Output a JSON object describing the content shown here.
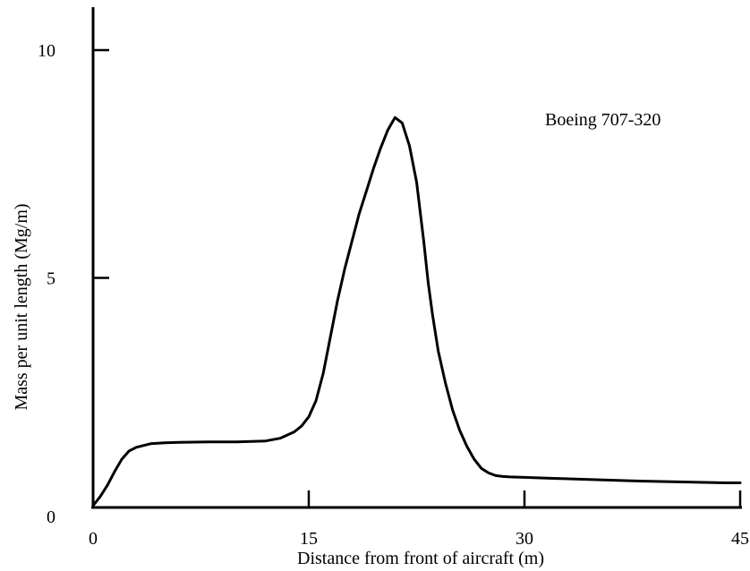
{
  "chart_data": {
    "type": "line",
    "title": "",
    "xlabel": "Distance from front of aircraft  (m)",
    "ylabel": "Mass per unit length  (Mg/m)",
    "annotation": "Boeing 707-320",
    "xlim": [
      0,
      45
    ],
    "ylim": [
      0,
      10
    ],
    "x_ticks": [
      0,
      15,
      30,
      45
    ],
    "y_ticks": [
      0,
      5,
      10
    ],
    "grid": false,
    "series": [
      {
        "x": [
          0,
          0.5,
          1,
          1.5,
          2,
          2.5,
          3,
          4,
          5,
          6,
          8,
          10,
          12,
          13,
          14,
          14.5,
          15,
          15.5,
          16,
          16.5,
          17,
          17.5,
          18,
          18.5,
          19,
          19.5,
          20,
          20.5,
          21,
          21.5,
          22,
          22.5,
          23,
          23.3,
          23.6,
          24,
          24.5,
          25,
          25.5,
          26,
          26.5,
          27,
          27.5,
          28,
          28.5,
          29,
          30,
          32,
          35,
          38,
          41,
          44,
          45
        ],
        "y": [
          0.0,
          0.2,
          0.45,
          0.75,
          1.02,
          1.2,
          1.28,
          1.36,
          1.38,
          1.39,
          1.4,
          1.4,
          1.42,
          1.48,
          1.62,
          1.75,
          1.95,
          2.3,
          2.9,
          3.7,
          4.5,
          5.2,
          5.8,
          6.4,
          6.9,
          7.4,
          7.85,
          8.25,
          8.52,
          8.4,
          7.9,
          7.1,
          5.8,
          4.9,
          4.2,
          3.4,
          2.7,
          2.1,
          1.65,
          1.3,
          1.02,
          0.82,
          0.72,
          0.66,
          0.64,
          0.63,
          0.62,
          0.6,
          0.57,
          0.54,
          0.52,
          0.5,
          0.5
        ]
      }
    ]
  }
}
